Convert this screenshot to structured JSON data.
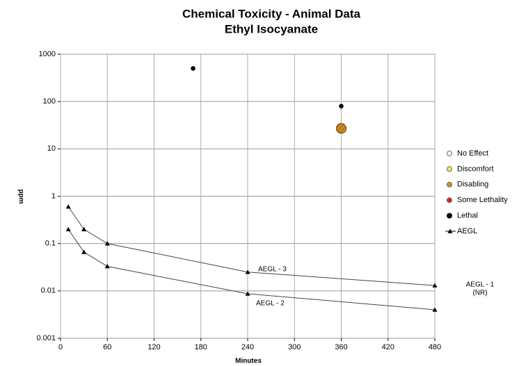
{
  "chart_data": {
    "type": "scatter",
    "title": [
      "Chemical Toxicity - Animal Data",
      "Ethyl Isocyanate"
    ],
    "xlabel": "Minutes",
    "ylabel": "ppm",
    "xlim": [
      0,
      480
    ],
    "xticks": [
      0,
      60,
      120,
      180,
      240,
      300,
      360,
      420,
      480
    ],
    "ylim": [
      0.001,
      1000
    ],
    "yticks": [
      0.001,
      0.01,
      0.1,
      1,
      10,
      100,
      1000
    ],
    "yscale": "log",
    "grid": true,
    "legend": "right",
    "series": [
      {
        "name": "No Effect",
        "color": "#ffffff",
        "x": [],
        "values": []
      },
      {
        "name": "Discomfort",
        "color": "#f2e84a",
        "x": [],
        "values": []
      },
      {
        "name": "Disabling",
        "color": "#d98c22",
        "x": [
          360
        ],
        "values": [
          27
        ]
      },
      {
        "name": "Some Lethality",
        "color": "#e02020",
        "x": [],
        "values": []
      },
      {
        "name": "Lethal",
        "color": "#000000",
        "x": [
          170,
          360
        ],
        "values": [
          500,
          80
        ]
      },
      {
        "name": "AEGL",
        "color": "#000000",
        "lines": [
          {
            "label": "AEGL - 3",
            "x": [
              10,
              30,
              60,
              240,
              480
            ],
            "values": [
              0.6,
              0.2,
              0.1,
              0.025,
              0.013
            ]
          },
          {
            "label": "AEGL - 2",
            "x": [
              10,
              30,
              60,
              240,
              480
            ],
            "values": [
              0.2,
              0.066,
              0.033,
              0.0087,
              0.004
            ]
          }
        ]
      }
    ],
    "annotations": [
      "AEGL - 1",
      "(NR)"
    ]
  }
}
